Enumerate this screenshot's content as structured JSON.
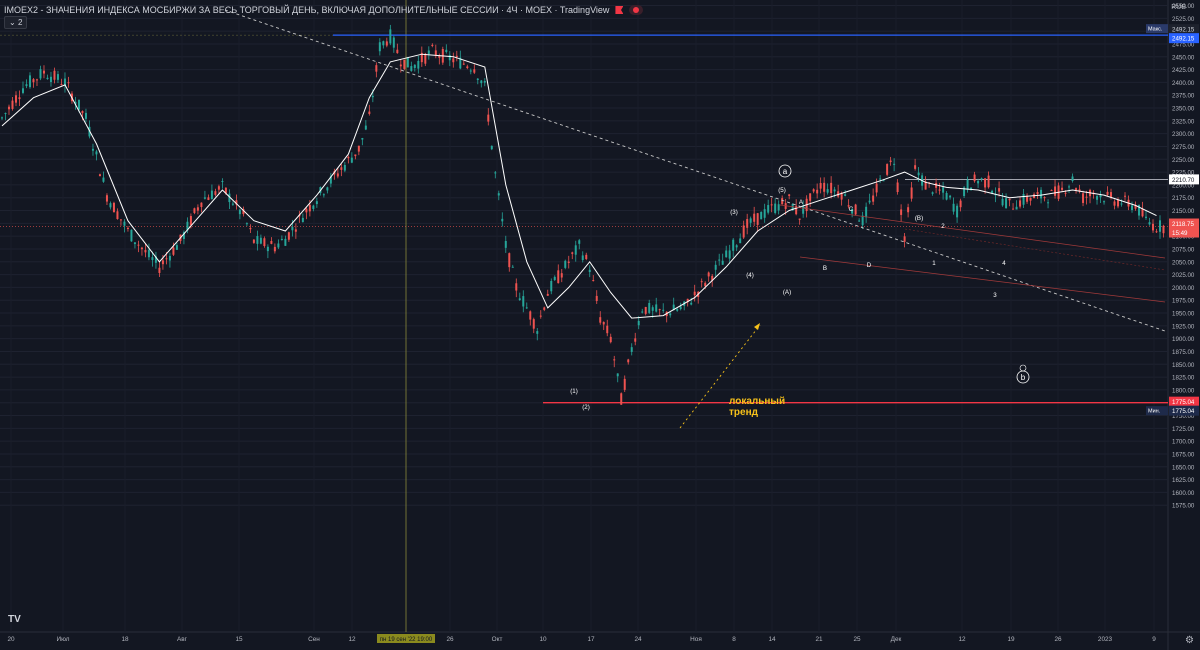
{
  "header": {
    "title": "IMOEX2 - ЗНАЧЕНИЯ ИНДЕКСА МОСБИРЖИ ЗА ВЕСЬ ТОРГОВЫЙ ДЕНЬ, ВКЛЮЧАЯ ДОПОЛНИТЕЛЬНЫЕ СЕССИИ · 4Ч · MOEX · TradingView",
    "indicators_count": "2",
    "currency": "RUB"
  },
  "colors": {
    "background": "#131722",
    "up": "#26a69a",
    "down": "#ef5350",
    "max_line": "#2962ff",
    "min_line": "#f23645",
    "trend_text": "#f7c21a",
    "ma": "#ffffff"
  },
  "chart_data": {
    "type": "candlestick",
    "symbol": "IMOEX2",
    "interval": "4Ч",
    "y_ticks": [
      "2550.00",
      "2525.00",
      "2500.00",
      "2475.00",
      "2450.00",
      "2425.00",
      "2400.00",
      "2375.00",
      "2350.00",
      "2325.00",
      "2300.00",
      "2275.00",
      "2250.00",
      "2225.00",
      "2200.00",
      "2175.00",
      "2150.00",
      "2125.00",
      "2100.00",
      "2075.00",
      "2050.00",
      "2025.00",
      "2000.00",
      "1975.00",
      "1950.00",
      "1925.00",
      "1900.00",
      "1875.00",
      "1850.00",
      "1825.00",
      "1800.00",
      "1775.00",
      "1750.00",
      "1725.00",
      "1700.00",
      "1675.00",
      "1650.00",
      "1625.00",
      "1600.00",
      "1575.00"
    ],
    "x_ticks": [
      "20",
      "Июл",
      "18",
      "Авг",
      "15",
      "Сен",
      "12",
      "26",
      "Окт",
      "10",
      "17",
      "24",
      "Ноя",
      "8",
      "14",
      "21",
      "25",
      "Дек",
      "12",
      "19",
      "26",
      "2023",
      "9",
      "16"
    ],
    "cursor_x_label": "пн 19 сен '22  19:00",
    "price_labels": {
      "max": {
        "tag": "Макс.",
        "value": "2492.15"
      },
      "min": {
        "tag": "Мин.",
        "value": "1775.04"
      },
      "level": "2210.70",
      "last": "2118.75",
      "countdown": "15:49"
    },
    "levels": {
      "max": 2492.15,
      "min": 1775.04,
      "resistance": 2210.7,
      "last": 2118.75
    },
    "price_path": [
      [
        0,
        2330
      ],
      [
        2,
        2390
      ],
      [
        4,
        2420
      ],
      [
        6,
        2400
      ],
      [
        8,
        2330
      ],
      [
        10,
        2180
      ],
      [
        12,
        2110
      ],
      [
        14,
        2060
      ],
      [
        15,
        2040
      ],
      [
        17,
        2090
      ],
      [
        19,
        2170
      ],
      [
        21,
        2195
      ],
      [
        23,
        2140
      ],
      [
        24,
        2090
      ],
      [
        26,
        2080
      ],
      [
        27,
        2095
      ],
      [
        29,
        2150
      ],
      [
        31,
        2200
      ],
      [
        34,
        2270
      ],
      [
        35,
        2330
      ],
      [
        36,
        2470
      ],
      [
        37,
        2490
      ],
      [
        38,
        2445
      ],
      [
        39,
        2430
      ],
      [
        41,
        2460
      ],
      [
        43,
        2445
      ],
      [
        45,
        2430
      ],
      [
        46,
        2390
      ],
      [
        47,
        2220
      ],
      [
        48,
        2080
      ],
      [
        49,
        2000
      ],
      [
        50,
        1960
      ],
      [
        51,
        1920
      ],
      [
        52,
        1990
      ],
      [
        53,
        2020
      ],
      [
        54,
        2050
      ],
      [
        55,
        2080
      ],
      [
        56,
        2040
      ],
      [
        57,
        1940
      ],
      [
        58,
        1900
      ],
      [
        59,
        1780
      ],
      [
        60,
        1880
      ],
      [
        61,
        1960
      ],
      [
        63,
        1950
      ],
      [
        65,
        1960
      ],
      [
        67,
        2010
      ],
      [
        69,
        2060
      ],
      [
        71,
        2120
      ],
      [
        73,
        2150
      ],
      [
        75,
        2170
      ],
      [
        76,
        2140
      ],
      [
        78,
        2200
      ],
      [
        80,
        2185
      ],
      [
        82,
        2130
      ],
      [
        84,
        2220
      ],
      [
        85,
        2250
      ],
      [
        86,
        2100
      ],
      [
        87,
        2230
      ],
      [
        88,
        2200
      ],
      [
        90,
        2180
      ],
      [
        91,
        2150
      ],
      [
        92,
        2200
      ],
      [
        93,
        2210
      ],
      [
        94,
        2205
      ],
      [
        95,
        2180
      ],
      [
        96,
        2160
      ],
      [
        98,
        2175
      ],
      [
        100,
        2180
      ],
      [
        101,
        2190
      ],
      [
        102,
        2210
      ],
      [
        103,
        2175
      ],
      [
        104,
        2185
      ],
      [
        106,
        2170
      ],
      [
        108,
        2160
      ],
      [
        109,
        2130
      ],
      [
        110,
        2119
      ]
    ],
    "ma_path": [
      [
        0,
        2315
      ],
      [
        3,
        2370
      ],
      [
        6,
        2395
      ],
      [
        9,
        2280
      ],
      [
        12,
        2130
      ],
      [
        15,
        2050
      ],
      [
        18,
        2120
      ],
      [
        21,
        2190
      ],
      [
        24,
        2130
      ],
      [
        27,
        2110
      ],
      [
        30,
        2180
      ],
      [
        33,
        2260
      ],
      [
        35,
        2370
      ],
      [
        37,
        2440
      ],
      [
        40,
        2455
      ],
      [
        43,
        2450
      ],
      [
        46,
        2430
      ],
      [
        48,
        2200
      ],
      [
        50,
        2050
      ],
      [
        52,
        1960
      ],
      [
        54,
        2000
      ],
      [
        56,
        2050
      ],
      [
        58,
        1990
      ],
      [
        60,
        1940
      ],
      [
        63,
        1945
      ],
      [
        66,
        1980
      ],
      [
        69,
        2040
      ],
      [
        72,
        2110
      ],
      [
        75,
        2150
      ],
      [
        78,
        2170
      ],
      [
        81,
        2190
      ],
      [
        84,
        2210
      ],
      [
        86,
        2225
      ],
      [
        88,
        2205
      ],
      [
        90,
        2195
      ],
      [
        93,
        2190
      ],
      [
        96,
        2175
      ],
      [
        99,
        2180
      ],
      [
        102,
        2190
      ],
      [
        105,
        2180
      ],
      [
        108,
        2160
      ],
      [
        110,
        2140
      ]
    ]
  },
  "wave_labels": [
    {
      "text": "(1)"
    },
    {
      "text": "(2)"
    },
    {
      "text": "(3)"
    },
    {
      "text": "(4)"
    },
    {
      "text": "(5)"
    },
    {
      "text": "(A)"
    },
    {
      "text": "A"
    },
    {
      "text": "B"
    },
    {
      "text": "C"
    },
    {
      "text": "D"
    },
    {
      "text": "(B)"
    },
    {
      "text": "1"
    },
    {
      "text": "2"
    },
    {
      "text": "3"
    },
    {
      "text": "4"
    }
  ],
  "circled_labels": {
    "a": "a",
    "b": "b"
  },
  "annotation": {
    "trend_text": "локальный\nтренд"
  }
}
